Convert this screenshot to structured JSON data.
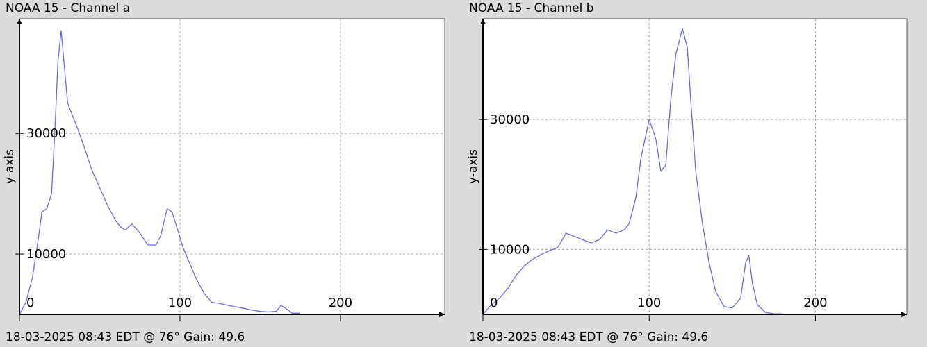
{
  "colors": {
    "background": "#dcdcdc",
    "plot_background": "#ffffff",
    "line": "#6b6bde",
    "axis": "#000000",
    "grid": "#a8a8a8"
  },
  "panels": [
    {
      "title": "NOAA 15 - Channel a",
      "footer": "18-03-2025 08:43 EDT @ 76° Gain: 49.6",
      "ylabel": "y-axis"
    },
    {
      "title": "NOAA 15 - Channel b",
      "footer": "18-03-2025 08:43 EDT @ 76° Gain: 49.6",
      "ylabel": "y-axis"
    }
  ],
  "chart_data": [
    {
      "type": "line",
      "title": "NOAA 15 - Channel a",
      "xlabel": "",
      "ylabel": "y-axis",
      "xlim": [
        0,
        265
      ],
      "ylim": [
        0,
        49000
      ],
      "xticks": [
        0,
        100,
        200
      ],
      "yticks": [
        10000,
        30000
      ],
      "grid": true,
      "series": [
        {
          "x": [
            0,
            4,
            8,
            12,
            14,
            17,
            20,
            22,
            24,
            26,
            28,
            30,
            33,
            36,
            40,
            45,
            50,
            55,
            60,
            63,
            66,
            70,
            75,
            80,
            85,
            88,
            92,
            95,
            98,
            102,
            106,
            110,
            115,
            120,
            125,
            130,
            140,
            145,
            150,
            155,
            160,
            163,
            167,
            170,
            175
          ],
          "y": [
            0,
            2000,
            6000,
            13000,
            17000,
            17500,
            20000,
            30000,
            42000,
            47000,
            41000,
            35000,
            33000,
            31000,
            28000,
            24000,
            21000,
            18000,
            15500,
            14500,
            14000,
            15000,
            13500,
            11500,
            11500,
            13000,
            17500,
            17000,
            14500,
            11000,
            8500,
            6000,
            3500,
            2000,
            1800,
            1500,
            1000,
            700,
            500,
            400,
            500,
            1500,
            800,
            200,
            200
          ]
        }
      ]
    },
    {
      "type": "line",
      "title": "NOAA 15 - Channel b",
      "xlabel": "",
      "ylabel": "y-axis",
      "xlim": [
        0,
        255
      ],
      "ylim": [
        0,
        45500
      ],
      "xticks": [
        0,
        100,
        200
      ],
      "yticks": [
        10000,
        30000
      ],
      "grid": true,
      "series": [
        {
          "x": [
            0,
            5,
            10,
            15,
            20,
            25,
            30,
            35,
            40,
            45,
            50,
            55,
            60,
            65,
            70,
            75,
            80,
            85,
            88,
            92,
            95,
            100,
            104,
            107,
            110,
            113,
            116,
            120,
            123,
            125,
            128,
            132,
            136,
            140,
            145,
            150,
            155,
            158,
            160,
            162,
            165,
            170,
            175,
            180
          ],
          "y": [
            0,
            1500,
            2500,
            4000,
            6000,
            7500,
            8500,
            9200,
            9800,
            10300,
            12500,
            12000,
            11500,
            11000,
            11500,
            13000,
            12500,
            13000,
            14000,
            18000,
            24000,
            30000,
            27000,
            22000,
            23000,
            33000,
            40000,
            44000,
            41000,
            33000,
            22000,
            14000,
            8000,
            3500,
            1200,
            1000,
            2500,
            8000,
            9000,
            5000,
            1500,
            300,
            100,
            100
          ]
        }
      ]
    }
  ]
}
